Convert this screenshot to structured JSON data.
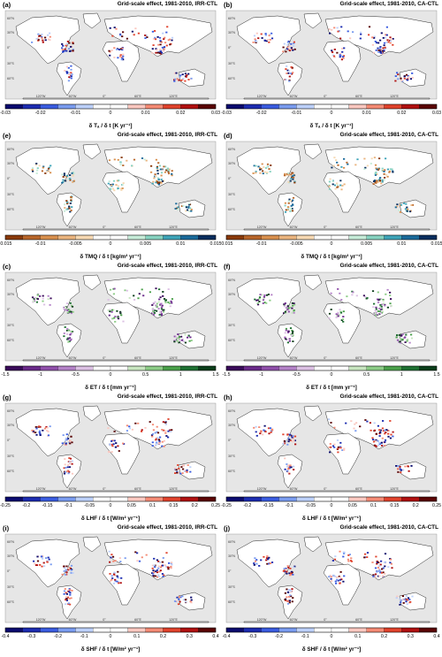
{
  "panels": [
    {
      "label": "(a)",
      "title": "Grid-scale effect, 1981-2010, IRR-CTL",
      "var_label": "δ Tₐ / δ t [K yr⁻¹]",
      "palette": "temp",
      "ticks": [
        "-0.03",
        "-0.02",
        "-0.01",
        "0",
        "0.01",
        "0.02",
        "0.03"
      ],
      "minor_ticks": true
    },
    {
      "label": "(b)",
      "title": "Grid-scale effect, 1981-2010, CA-CTL",
      "var_label": "δ Tₐ / δ t [K yr⁻¹]",
      "palette": "temp",
      "ticks": [
        "-0.03",
        "-0.02",
        "-0.01",
        "0",
        "0.01",
        "0.02",
        "0.03"
      ],
      "minor_ticks": true
    },
    {
      "label": "(e)",
      "title": "Grid-scale effect, 1981-2010, IRR-CTL",
      "var_label": "δ TMQ / δ t [kg/m² yr⁻¹]",
      "palette": "tmq",
      "ticks": [
        "-0.015",
        "-0.01",
        "-0.005",
        "0",
        "0.005",
        "0.01",
        "0.015"
      ],
      "minor_ticks": true
    },
    {
      "label": "(d)",
      "title": "Grid-scale effect, 1981-2010, CA-CTL",
      "var_label": "δ TMQ / δ t [kg/m² yr⁻¹]",
      "palette": "tmq",
      "ticks": [
        "-0.015",
        "-0.01",
        "-0.005",
        "0",
        "0.005",
        "0.01",
        "0.015"
      ],
      "minor_ticks": true
    },
    {
      "label": "(c)",
      "title": "Grid-scale effect, 1981-2010, IRR-CTL",
      "var_label": "δ ET / δ t [mm yr⁻¹]",
      "palette": "et",
      "ticks": [
        "-1.5",
        "-1",
        "-0.5",
        "0",
        "0.5",
        "1",
        "1.5"
      ],
      "minor_ticks": true
    },
    {
      "label": "(f)",
      "title": "Grid-scale effect, 1981-2010, CA-CTL",
      "var_label": "δ ET / δ t [mm yr⁻¹]",
      "palette": "et",
      "ticks": [
        "-1.5",
        "-1",
        "-0.5",
        "0",
        "0.5",
        "1",
        "1.5"
      ],
      "minor_ticks": true
    },
    {
      "label": "(g)",
      "title": "Grid-scale effect, 1981-2010, IRR-CTL",
      "var_label": "δ LHF / δ t [W/m² yr⁻¹]",
      "palette": "flux",
      "ticks": [
        "-0.25",
        "-0.2",
        "-0.15",
        "-0.1",
        "-0.05",
        "0",
        "0.05",
        "0.1",
        "0.15",
        "0.2",
        "0.25"
      ],
      "minor_ticks": false
    },
    {
      "label": "(h)",
      "title": "Grid-scale effect, 1981-2010, CA-CTL",
      "var_label": "δ LHF / δ t [W/m² yr⁻¹]",
      "palette": "flux",
      "ticks": [
        "-0.25",
        "-0.2",
        "-0.15",
        "-0.1",
        "-0.05",
        "0",
        "0.05",
        "0.1",
        "0.15",
        "0.2",
        "0.25"
      ],
      "minor_ticks": false
    },
    {
      "label": "(i)",
      "title": "Grid-scale effect, 1981-2010, IRR-CTL",
      "var_label": "δ SHF / δ t [W/m² yr⁻¹]",
      "palette": "flux",
      "ticks": [
        "-0.4",
        "-0.3",
        "-0.2",
        "-0.1",
        "0",
        "0.1",
        "0.2",
        "0.3",
        "0.4"
      ],
      "minor_ticks": false
    },
    {
      "label": "(j)",
      "title": "Grid-scale effect, 1981-2010, CA-CTL",
      "var_label": "δ SHF / δ t [W/m² yr⁻¹]",
      "palette": "flux",
      "ticks": [
        "-0.4",
        "-0.3",
        "-0.2",
        "-0.1",
        "0",
        "0.1",
        "0.2",
        "0.3",
        "0.4"
      ],
      "minor_ticks": false
    }
  ],
  "map_axis": {
    "lat_labels": [
      "60°N",
      "30°N",
      "0°",
      "30°S",
      "60°S"
    ],
    "lon_labels": [
      "120°W",
      "60°W",
      "0°",
      "60°E",
      "120°E"
    ]
  },
  "palettes": {
    "temp": [
      "#0a0a6e",
      "#1c2cb0",
      "#3a5ce0",
      "#7a9cf0",
      "#bcd0fa",
      "#ffffff",
      "#ffffff",
      "#fbc8c0",
      "#f48a74",
      "#e0422c",
      "#b01010",
      "#5a0404"
    ],
    "tmq": [
      "#8a3a0a",
      "#b8662a",
      "#d8904e",
      "#eab47e",
      "#f6d8b2",
      "#ffffff",
      "#ffffff",
      "#c6ecd8",
      "#86d2c0",
      "#3ea4b8",
      "#1a6a9a",
      "#0a2e5e"
    ],
    "et": [
      "#3a0a5a",
      "#6a2a8a",
      "#9050aa",
      "#b482c8",
      "#dcc0e4",
      "#ffffff",
      "#ffffff",
      "#c8e6c0",
      "#8ccc86",
      "#4aa04a",
      "#1e7032",
      "#0a3e1a"
    ],
    "flux": [
      "#0a0a6e",
      "#1c2cb0",
      "#3a5ce0",
      "#7a9cf0",
      "#bcd0fa",
      "#ffffff",
      "#ffffff",
      "#fbc8c0",
      "#f48a74",
      "#e0422c",
      "#b01010",
      "#5a0404"
    ]
  },
  "colors": {
    "ocean": "#e6e6e6",
    "land_outline": "#2a2a2a",
    "land_fill": "#ffffff"
  }
}
